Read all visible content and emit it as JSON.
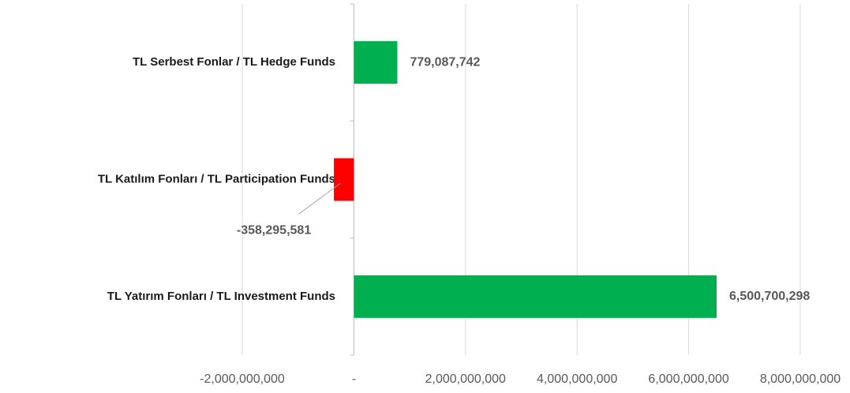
{
  "chart_data": {
    "type": "hbar",
    "categories": [
      "TL Serbest Fonlar / TL Hedge Funds",
      "TL Katılım Fonları / TL Participation Funds",
      "TL Yatırım Fonları / TL Investment Funds"
    ],
    "values": [
      779087742,
      -358295581,
      6500700298
    ],
    "value_labels": [
      "779,087,742",
      "-358,295,581",
      "6,500,700,298"
    ],
    "colors": [
      "#00b050",
      "#ff0000",
      "#00b050"
    ],
    "xlim": [
      -2000000000,
      8000000000
    ],
    "xticks": [
      {
        "value": -2000000000,
        "label": "-2,000,000,000"
      },
      {
        "value": 0,
        "label": "-"
      },
      {
        "value": 2000000000,
        "label": "2,000,000,000"
      },
      {
        "value": 4000000000,
        "label": "4,000,000,000"
      },
      {
        "value": 6000000000,
        "label": "6,000,000,000"
      },
      {
        "value": 8000000000,
        "label": "8,000,000,000"
      }
    ],
    "grid": true
  }
}
